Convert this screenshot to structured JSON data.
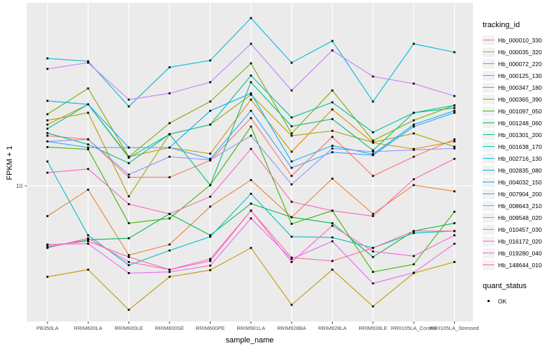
{
  "chart_data": {
    "type": "line",
    "title": "",
    "xlabel": "sample_name",
    "ylabel": "FPKM + 1",
    "y_scale": "log10",
    "y_ticks": [
      10
    ],
    "ylim": [
      1.66,
      112.7
    ],
    "grid": true,
    "panel_bg": "#EBEBEB",
    "grid_color": "#FFFFFF",
    "tick_text_color": "#4D4D4D",
    "point_shape": "square",
    "point_color": "#000000",
    "legend_position": "right",
    "categories": [
      "PB350LA",
      "RRIM600LA",
      "RRIM600LE",
      "RRIM600SE",
      "RRIM600PE",
      "RRIM901LA",
      "RRIM928BA",
      "RRIM928LA",
      "RRIM928LE",
      "RRII105LA_Control",
      "RRII105LA_Stressed"
    ],
    "series": [
      {
        "name": "Hb_000010_330",
        "color": "#F8766D",
        "values": [
          19.4,
          18.5,
          11.2,
          11.2,
          14.0,
          24.5,
          11.4,
          19.1,
          11.4,
          14.7,
          18.5
        ]
      },
      {
        "name": "Hb_000035_320",
        "color": "#EA8331",
        "values": [
          6.7,
          9.5,
          4.0,
          4.6,
          7.6,
          10.8,
          6.6,
          11.0,
          6.9,
          10.1,
          9.3
        ]
      },
      {
        "name": "Hb_000072_220",
        "color": "#D89000",
        "values": [
          22.5,
          29.4,
          14.7,
          16.6,
          15.3,
          31.3,
          15.7,
          27.5,
          17.7,
          16.3,
          18.0
        ]
      },
      {
        "name": "Hb_000125_130",
        "color": "#C09B00",
        "values": [
          3.0,
          3.3,
          1.94,
          3.0,
          3.28,
          4.4,
          2.07,
          3.3,
          2.03,
          3.15,
          3.65
        ]
      },
      {
        "name": "Hb_000347_180",
        "color": "#A3A500",
        "values": [
          23.8,
          26.3,
          8.7,
          19.8,
          22.5,
          33.4,
          19.4,
          20.7,
          17.8,
          20.0,
          16.8
        ]
      },
      {
        "name": "Hb_000365_390",
        "color": "#7CAE00",
        "values": [
          25.8,
          36.3,
          14.7,
          22.9,
          30.5,
          50.6,
          20.0,
          35.3,
          18.2,
          23.8,
          29.0
        ]
      },
      {
        "name": "Hb_001097_050",
        "color": "#39B600",
        "values": [
          16.7,
          16.2,
          6.1,
          6.5,
          10.1,
          21.9,
          6.05,
          7.2,
          3.2,
          3.54,
          7.1
        ]
      },
      {
        "name": "Hb_001248_060",
        "color": "#00BB4E",
        "values": [
          4.45,
          4.9,
          5.0,
          6.9,
          5.2,
          7.9,
          6.6,
          6.1,
          3.9,
          5.5,
          6.1
        ]
      },
      {
        "name": "Hb_001301_200",
        "color": "#00BF7D",
        "values": [
          20.1,
          17.3,
          13.5,
          19.8,
          10.1,
          39.4,
          22.0,
          24.2,
          16.0,
          26.3,
          28.0
        ]
      },
      {
        "name": "Hb_001638_170",
        "color": "#00C1A3",
        "values": [
          21.3,
          29.4,
          14.5,
          19.8,
          22.5,
          43.0,
          24.7,
          30.2,
          20.3,
          26.3,
          29.0
        ]
      },
      {
        "name": "Hb_002716_130",
        "color": "#00BFC4",
        "values": [
          13.8,
          5.2,
          3.5,
          4.25,
          5.1,
          9.0,
          5.1,
          5.05,
          4.4,
          5.35,
          5.5
        ]
      },
      {
        "name": "Hb_002835_080",
        "color": "#00BAE0",
        "values": [
          54.0,
          52.0,
          28.6,
          48.0,
          52.5,
          92.0,
          51.0,
          68.0,
          30.5,
          65.5,
          58.6
        ]
      },
      {
        "name": "Hb_004032_150",
        "color": "#00B0F6",
        "values": [
          30.8,
          29.4,
          16.6,
          16.6,
          27.0,
          34.0,
          13.8,
          17.0,
          15.2,
          22.5,
          27.0
        ]
      },
      {
        "name": "Hb_007904_200",
        "color": "#35A2FF",
        "values": [
          18.0,
          16.6,
          16.6,
          16.6,
          14.3,
          27.0,
          12.7,
          15.6,
          15.0,
          21.9,
          26.3
        ]
      },
      {
        "name": "Hb_008643_210",
        "color": "#9590FF",
        "values": [
          18.0,
          18.5,
          11.6,
          14.7,
          14.1,
          19.4,
          10.2,
          16.4,
          15.7,
          16.1,
          16.4
        ]
      },
      {
        "name": "Hb_009548_020",
        "color": "#C77CFF",
        "values": [
          47.0,
          51.0,
          31.3,
          34.0,
          39.4,
          65.5,
          35.3,
          60.0,
          42.5,
          38.7,
          32.8
        ]
      },
      {
        "name": "Hb_010457_030",
        "color": "#E76BF3",
        "values": [
          4.6,
          4.65,
          3.15,
          3.2,
          3.48,
          6.5,
          3.8,
          4.8,
          2.75,
          3.17,
          4.65
        ]
      },
      {
        "name": "Hb_016172_020",
        "color": "#FA62DB",
        "values": [
          4.4,
          5.0,
          3.65,
          3.3,
          3.8,
          7.2,
          3.65,
          5.9,
          4.2,
          3.95,
          5.2
        ]
      },
      {
        "name": "Hb_019280_040",
        "color": "#FF62BC",
        "values": [
          11.9,
          12.5,
          7.85,
          6.9,
          8.66,
          16.3,
          8.1,
          7.2,
          6.7,
          10.9,
          14.3
        ]
      },
      {
        "name": "Hb_148644_010",
        "color": "#FF6A98",
        "values": [
          4.55,
          4.8,
          3.9,
          3.3,
          3.7,
          7.2,
          3.87,
          3.7,
          4.4,
          5.5,
          5.5
        ]
      }
    ]
  },
  "legend": {
    "tracking_title": "tracking_id",
    "quant_title": "quant_status",
    "quant_items": [
      {
        "label": "OK"
      }
    ]
  }
}
